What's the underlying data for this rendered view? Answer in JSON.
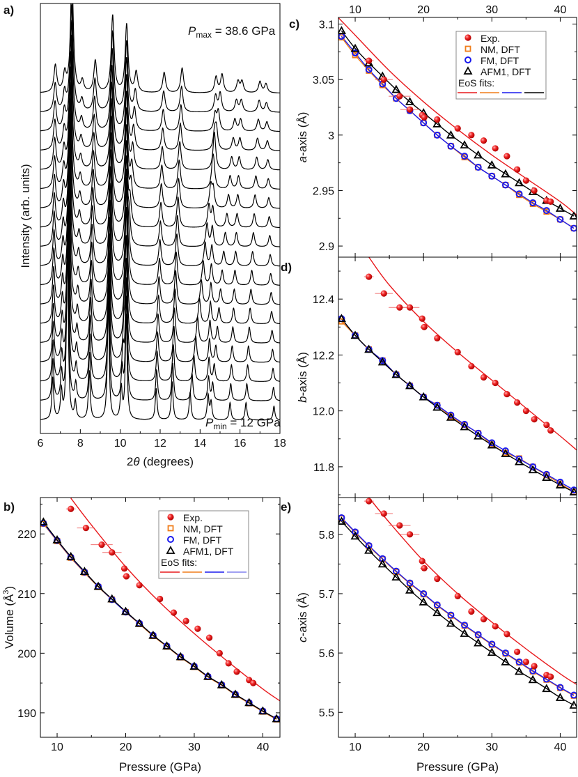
{
  "chart_data": [
    {
      "panel": "a)",
      "type": "line",
      "xlabel_prefix": "2",
      "xlabel_symbol": "θ",
      "xlabel_suffix": " (degrees)",
      "ylabel": "Intensity (arb. units)",
      "xlim": [
        6,
        18
      ],
      "xticks": [
        6,
        8,
        10,
        12,
        14,
        16,
        18
      ],
      "pattern_count": 18,
      "annotation_top": {
        "symbol": "P",
        "sub": "max",
        "text": " = 38.6 GPa"
      },
      "annotation_bottom": {
        "symbol": "P",
        "sub": "min",
        "text": " = 12 GPa"
      },
      "peaks_pmin_to_pmax": [
        [
          6.62,
          6.75,
          60
        ],
        [
          7.05,
          7.22,
          40
        ],
        [
          7.35,
          7.58,
          260
        ],
        [
          7.75,
          8.1,
          25
        ],
        [
          8.45,
          8.75,
          70
        ],
        [
          9.4,
          9.62,
          170
        ],
        [
          10.3,
          10.32,
          150
        ],
        [
          10.05,
          10.8,
          45
        ],
        [
          11.8,
          12.2,
          45
        ],
        [
          12.6,
          13.1,
          55
        ],
        [
          13.5,
          15.1,
          40
        ],
        [
          14.4,
          14.8,
          35
        ],
        [
          14.55,
          15.9,
          25
        ],
        [
          15.5,
          16.1,
          25
        ],
        [
          16.3,
          17.0,
          25
        ],
        [
          17.7,
          17.3,
          20
        ]
      ]
    },
    {
      "panel": "b)",
      "type": "scatter",
      "xlabel": "Pressure (GPa)",
      "ylabel": "Volume (Å",
      "ylabel_sup": "3",
      "ylabel_end": ")",
      "xlim": [
        7.56,
        42.5
      ],
      "ylim": [
        185.9,
        226.1
      ],
      "xticks": [
        10,
        20,
        30,
        40
      ],
      "yticks": [
        190,
        200,
        210,
        220
      ],
      "series": [
        {
          "name": "Exp.",
          "x": [
            12,
            14.2,
            16.5,
            18,
            19.8,
            20.1,
            22,
            25,
            27,
            28.8,
            30.5,
            32.2,
            33.7,
            35,
            36.2,
            38,
            38.6
          ],
          "y": [
            224.2,
            221,
            218.2,
            216.9,
            214.2,
            212.9,
            211.4,
            209.1,
            206.8,
            205.4,
            204.1,
            202.6,
            200,
            198.3,
            196.9,
            195.5,
            195
          ]
        },
        {
          "name": "NM, DFT",
          "x": [
            8,
            10,
            12,
            14,
            16,
            18,
            20,
            22,
            24,
            26,
            28,
            30,
            32,
            34,
            36,
            38,
            40,
            42
          ],
          "y": [
            221.7,
            218.8,
            216,
            213.5,
            211.1,
            209,
            206.9,
            204.9,
            202.9,
            201.1,
            199.3,
            197.7,
            196,
            194.6,
            193,
            191.6,
            190.2,
            188.9
          ]
        },
        {
          "name": "FM, DFT",
          "x": [
            8,
            10,
            12,
            14,
            16,
            18,
            20,
            22,
            24,
            26,
            28,
            30,
            32,
            34,
            36,
            38,
            40,
            42
          ],
          "y": [
            221.8,
            218.9,
            216.1,
            213.6,
            211.2,
            209,
            206.9,
            205,
            203,
            201.2,
            199.4,
            197.8,
            196.1,
            194.7,
            193.1,
            191.7,
            190.3,
            189
          ]
        },
        {
          "name": "AFM1, DFT",
          "x": [
            8,
            10,
            12,
            14,
            16,
            18,
            20,
            22,
            24,
            26,
            28,
            30,
            32,
            34,
            36,
            38,
            40,
            42
          ],
          "y": [
            222,
            219,
            216.2,
            213.7,
            211.2,
            209.1,
            207,
            205,
            203,
            201.2,
            199.4,
            197.8,
            196.1,
            194.7,
            193.1,
            191.7,
            190.3,
            189
          ]
        }
      ],
      "fit_exp": {
        "x": [
          12,
          15,
          20,
          25,
          30,
          35,
          40,
          42.5
        ],
        "y": [
          226,
          221.5,
          214.5,
          208.5,
          203.3,
          198.5,
          194,
          192
        ]
      },
      "legend_fits_label": "EoS fits:"
    },
    {
      "panel": "c)",
      "type": "scatter",
      "ylabel_symbol": "a",
      "ylabel": "-axis (Å)",
      "xlim": [
        7.55,
        42.4
      ],
      "ylim": [
        2.89,
        3.106
      ],
      "xticks": [
        10,
        20,
        30,
        40
      ],
      "yticks": [
        "2.9",
        "2.95",
        "3",
        "3.05",
        "3.1"
      ],
      "series": [
        {
          "name": "Exp.",
          "x": [
            12,
            14.2,
            16.5,
            18,
            19.8,
            20.1,
            22,
            25,
            27,
            28.8,
            30.5,
            32.2,
            33.7,
            35,
            36.2,
            38,
            38.6
          ],
          "y": [
            3.067,
            3.05,
            3.035,
            3.023,
            3.018,
            3.016,
            3.014,
            3.006,
            3.0,
            2.995,
            2.988,
            2.981,
            2.969,
            2.959,
            2.95,
            2.941,
            2.94
          ]
        },
        {
          "name": "NM, DFT",
          "x": [
            8,
            10,
            12,
            14,
            16,
            18,
            20,
            22,
            24,
            26,
            28,
            30,
            32,
            34,
            36,
            38,
            40,
            42
          ],
          "y": [
            3.088,
            3.072,
            3.058,
            3.045,
            3.033,
            3.022,
            3.011,
            3.0,
            2.99,
            2.98,
            2.971,
            2.963,
            2.955,
            2.946,
            2.938,
            2.931,
            2.924,
            2.916
          ]
        },
        {
          "name": "FM, DFT",
          "x": [
            8,
            10,
            12,
            14,
            16,
            18,
            20,
            22,
            24,
            26,
            28,
            30,
            32,
            34,
            36,
            38,
            40,
            42
          ],
          "y": [
            3.089,
            3.074,
            3.059,
            3.046,
            3.033,
            3.022,
            3.011,
            3.0,
            2.99,
            2.981,
            2.971,
            2.963,
            2.955,
            2.947,
            2.939,
            2.932,
            2.924,
            2.916
          ]
        },
        {
          "name": "AFM1, DFT",
          "x": [
            8,
            10,
            12,
            14,
            16,
            18,
            20,
            22,
            24,
            26,
            28,
            30,
            32,
            34,
            36,
            38,
            40,
            42
          ],
          "y": [
            3.094,
            3.078,
            3.065,
            3.053,
            3.041,
            3.03,
            3.02,
            3.01,
            3.0,
            2.991,
            2.982,
            2.973,
            2.965,
            2.957,
            2.949,
            2.941,
            2.934,
            2.927
          ]
        }
      ],
      "fit_exp": {
        "x": [
          7.5,
          10,
          15,
          20,
          25,
          30,
          35,
          40,
          42.4
        ],
        "y": [
          3.106,
          3.09,
          3.058,
          3.03,
          3.005,
          2.982,
          2.961,
          2.94,
          2.928
        ]
      },
      "legend_fits_label": "EoS fits:"
    },
    {
      "panel": "d)",
      "type": "scatter",
      "ylabel_symbol": "b",
      "ylabel": "-axis (Å)",
      "xlim": [
        7.55,
        42.4
      ],
      "ylim": [
        11.69,
        12.55
      ],
      "xticks": [
        10,
        20,
        30,
        40
      ],
      "yticks": [
        "11.8",
        "12.0",
        "12.2",
        "12.4"
      ],
      "series": [
        {
          "name": "Exp.",
          "x": [
            12,
            14.2,
            16.5,
            18,
            19.8,
            20.1,
            22,
            25,
            27,
            28.8,
            30.5,
            32.2,
            33.7,
            35,
            36.2,
            38,
            38.6
          ],
          "y": [
            12.48,
            12.42,
            12.37,
            12.37,
            12.33,
            12.3,
            12.26,
            12.21,
            12.16,
            12.12,
            12.1,
            12.06,
            12.03,
            12.0,
            11.97,
            11.95,
            11.93
          ]
        },
        {
          "name": "NM, DFT",
          "x": [
            8,
            10,
            12,
            14,
            16,
            18,
            20,
            22,
            24,
            26,
            28,
            30,
            32,
            34,
            36,
            38,
            40,
            42
          ],
          "y": [
            12.32,
            12.27,
            12.22,
            12.18,
            12.13,
            12.09,
            12.05,
            12.02,
            11.98,
            11.95,
            11.92,
            11.88,
            11.85,
            11.83,
            11.8,
            11.77,
            11.74,
            11.71
          ]
        },
        {
          "name": "FM, DFT",
          "x": [
            8,
            10,
            12,
            14,
            16,
            18,
            20,
            22,
            24,
            26,
            28,
            30,
            32,
            34,
            36,
            38,
            40,
            42
          ],
          "y": [
            12.33,
            12.27,
            12.22,
            12.18,
            12.13,
            12.09,
            12.05,
            12.02,
            11.985,
            11.952,
            11.92,
            11.886,
            11.857,
            11.828,
            11.8,
            11.773,
            11.745,
            11.717
          ]
        },
        {
          "name": "AFM1, DFT",
          "x": [
            8,
            10,
            12,
            14,
            16,
            18,
            20,
            22,
            24,
            26,
            28,
            30,
            32,
            34,
            36,
            38,
            40,
            42
          ],
          "y": [
            12.33,
            12.27,
            12.22,
            12.175,
            12.13,
            12.09,
            12.05,
            12.013,
            11.977,
            11.943,
            11.91,
            11.878,
            11.847,
            11.818,
            11.789,
            11.762,
            11.735,
            11.71
          ]
        }
      ],
      "fit_exp": {
        "x": [
          12,
          15,
          20,
          25,
          30,
          35,
          40,
          42.4
        ],
        "y": [
          12.55,
          12.45,
          12.32,
          12.21,
          12.11,
          12.01,
          11.91,
          11.86
        ]
      }
    },
    {
      "panel": "e)",
      "type": "scatter",
      "xlabel": "Pressure (GPa)",
      "ylabel_symbol": "c",
      "ylabel": "-axis (Å)",
      "xlim": [
        7.55,
        42.4
      ],
      "ylim": [
        5.458,
        5.862
      ],
      "xticks": [
        10,
        20,
        30,
        40
      ],
      "yticks": [
        "5.5",
        "5.6",
        "5.7",
        "5.8"
      ],
      "series": [
        {
          "name": "Exp.",
          "x": [
            12,
            14.2,
            16.5,
            18,
            19.8,
            20.1,
            22,
            25,
            27,
            28.8,
            30.5,
            32.2,
            33.7,
            35,
            36.2,
            38,
            38.6
          ],
          "y": [
            5.856,
            5.835,
            5.815,
            5.8,
            5.755,
            5.743,
            5.725,
            5.696,
            5.67,
            5.657,
            5.645,
            5.632,
            5.602,
            5.585,
            5.578,
            5.563,
            5.56
          ]
        },
        {
          "name": "NM, DFT",
          "x": [
            8,
            10,
            12,
            14,
            16,
            18,
            20,
            22,
            24,
            26,
            28,
            30,
            32,
            34,
            36,
            38,
            40,
            42
          ],
          "y": [
            5.827,
            5.803,
            5.78,
            5.758,
            5.737,
            5.717,
            5.699,
            5.68,
            5.663,
            5.646,
            5.63,
            5.614,
            5.599,
            5.584,
            5.569,
            5.555,
            5.541,
            5.528
          ]
        },
        {
          "name": "FM, DFT",
          "x": [
            8,
            10,
            12,
            14,
            16,
            18,
            20,
            22,
            24,
            26,
            28,
            30,
            32,
            34,
            36,
            38,
            40,
            42
          ],
          "y": [
            5.828,
            5.804,
            5.781,
            5.759,
            5.738,
            5.718,
            5.7,
            5.681,
            5.664,
            5.647,
            5.631,
            5.615,
            5.6,
            5.585,
            5.57,
            5.556,
            5.542,
            5.529
          ]
        },
        {
          "name": "AFM1, DFT",
          "x": [
            8,
            10,
            12,
            14,
            16,
            18,
            20,
            22,
            24,
            26,
            28,
            30,
            32,
            34,
            36,
            38,
            40,
            42
          ],
          "y": [
            5.822,
            5.797,
            5.773,
            5.75,
            5.728,
            5.706,
            5.686,
            5.668,
            5.65,
            5.633,
            5.617,
            5.601,
            5.585,
            5.569,
            5.555,
            5.54,
            5.525,
            5.512
          ]
        }
      ],
      "fit_exp": {
        "x": [
          12,
          15,
          20,
          25,
          30,
          35,
          40,
          42.4
        ],
        "y": [
          5.862,
          5.82,
          5.755,
          5.7,
          5.652,
          5.607,
          5.565,
          5.547
        ]
      }
    }
  ],
  "colors": {
    "exp": "#e8191c",
    "nm": "#f07d1a",
    "fm": "#1a1aee",
    "afm1": "#000000"
  }
}
